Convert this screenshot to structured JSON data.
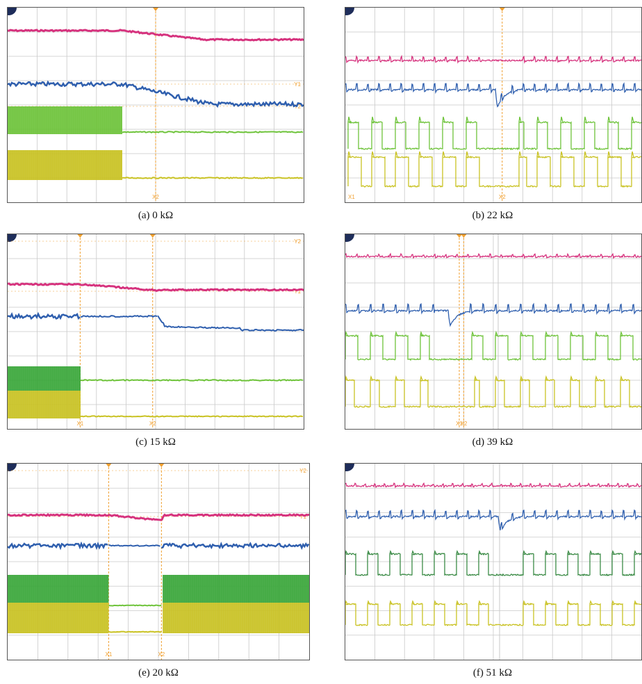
{
  "colors": {
    "grid": "#c9c9c9",
    "cursor": "#f0a030",
    "ch1": "#d6337e",
    "ch2": "#2f5fae",
    "ch3": "#6ec33a",
    "ch4": "#c9c223",
    "marker": "#1e2d5a"
  },
  "panels": [
    {
      "id": "a",
      "caption": "(a) 0 kΩ",
      "cursors": [
        {
          "t": 0.5,
          "label": "X2"
        }
      ],
      "hcursors": [
        "Y1",
        "Y2"
      ]
    },
    {
      "id": "b",
      "caption": "(b) 22 kΩ",
      "cursors": [
        {
          "t": 0.53,
          "label": "X2"
        }
      ],
      "hcursors": [],
      "bottom_left_label": "X1"
    },
    {
      "id": "c",
      "caption": "(c) 15 kΩ",
      "cursors": [
        {
          "t": 0.245,
          "label": "X1"
        },
        {
          "t": 0.49,
          "label": "X2"
        }
      ],
      "hcursors": [
        "Y1",
        "Y2"
      ]
    },
    {
      "id": "d",
      "caption": "(d) 39 kΩ",
      "cursors": [
        {
          "t": 0.385,
          "label": "X1"
        },
        {
          "t": 0.4,
          "label": "X2"
        }
      ],
      "hcursors": []
    },
    {
      "id": "e",
      "caption": "(e) 20 kΩ",
      "cursors": [
        {
          "t": 0.335,
          "label": "X1"
        },
        {
          "t": 0.51,
          "label": "X2"
        }
      ],
      "hcursors": [
        "Y1",
        "Y2"
      ]
    },
    {
      "id": "f",
      "caption": "(f) 51 kΩ",
      "cursors": [],
      "hcursors": []
    }
  ]
}
